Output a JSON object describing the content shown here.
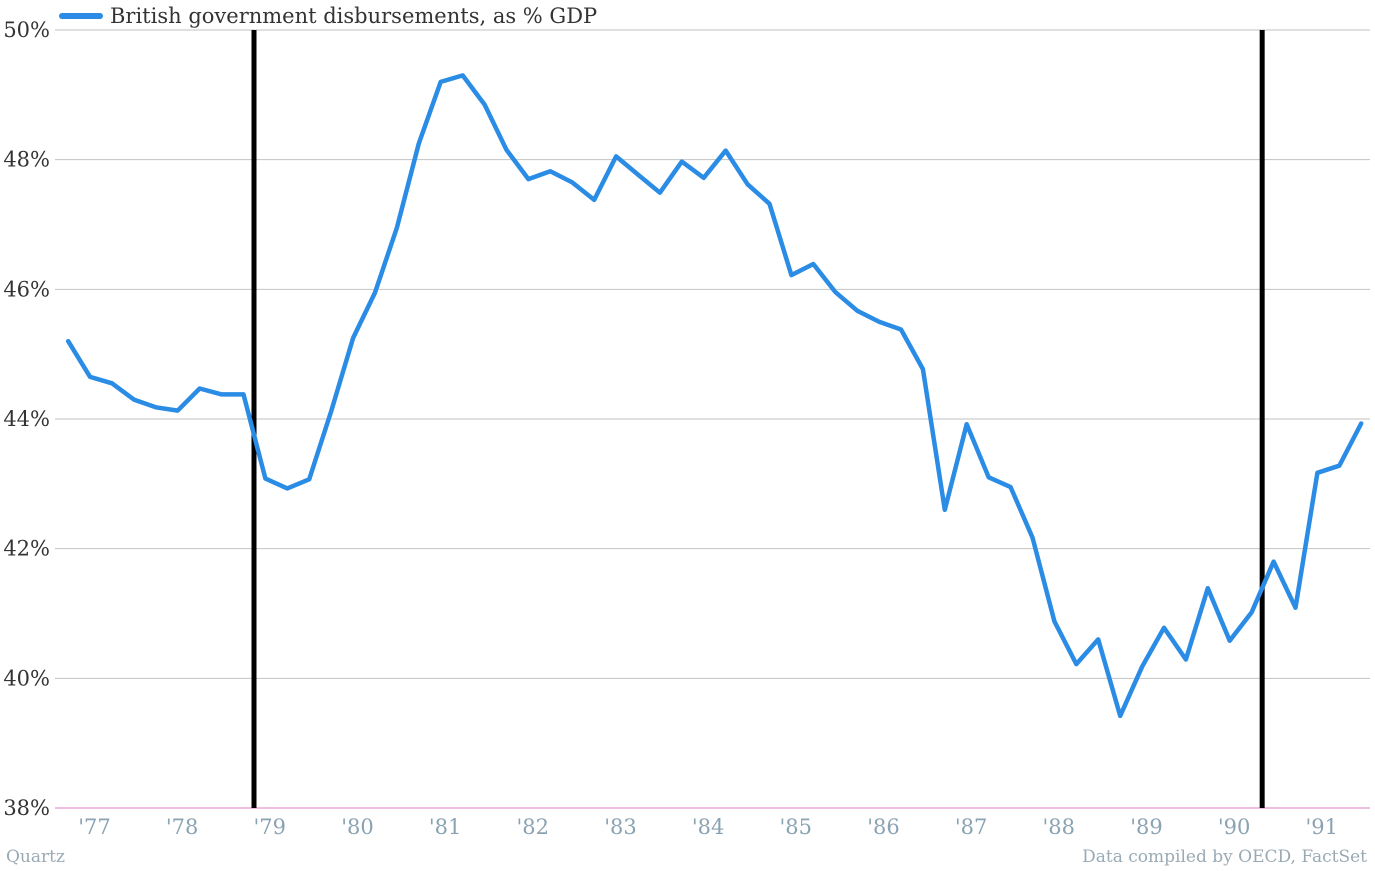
{
  "chart_data": {
    "type": "line",
    "title": "",
    "xlabel": "",
    "ylabel": "",
    "ylim": [
      38,
      50
    ],
    "y_ticks": [
      "38%",
      "40%",
      "42%",
      "44%",
      "46%",
      "48%",
      "50%"
    ],
    "y_tick_values": [
      38,
      40,
      42,
      44,
      46,
      48,
      50
    ],
    "x_ticks": [
      "'77",
      "'78",
      "'79",
      "'80",
      "'81",
      "'82",
      "'83",
      "'84",
      "'85",
      "'86",
      "'87",
      "'88",
      "'89",
      "'90",
      "'91"
    ],
    "x_tick_years": [
      1977,
      1978,
      1979,
      1980,
      1981,
      1982,
      1983,
      1984,
      1985,
      1986,
      1987,
      1988,
      1989,
      1990,
      1991
    ],
    "xlim": [
      1976.6,
      1991.6
    ],
    "grid": true,
    "legend_position": "top-left",
    "vertical_markers": [
      1978.87,
      1990.37
    ],
    "series": [
      {
        "name": "British government disbursements, as % GDP",
        "color": "#2b8ce5",
        "x": [
          1976.75,
          1977.0,
          1977.25,
          1977.5,
          1977.75,
          1978.0,
          1978.25,
          1978.5,
          1978.75,
          1979.0,
          1979.25,
          1979.5,
          1979.75,
          1980.0,
          1980.25,
          1980.5,
          1980.75,
          1981.0,
          1981.25,
          1981.5,
          1981.75,
          1982.0,
          1982.25,
          1982.5,
          1982.75,
          1983.0,
          1983.25,
          1983.5,
          1983.75,
          1984.0,
          1984.25,
          1984.5,
          1984.75,
          1985.0,
          1985.25,
          1985.5,
          1985.75,
          1986.0,
          1986.25,
          1986.5,
          1986.75,
          1987.0,
          1987.25,
          1987.5,
          1987.75,
          1988.0,
          1988.25,
          1988.5,
          1988.75,
          1989.0,
          1989.25,
          1989.5,
          1989.75,
          1990.0,
          1990.25,
          1990.5,
          1990.75,
          1991.0,
          1991.25,
          1991.5
        ],
        "values": [
          45.2,
          44.65,
          44.55,
          44.3,
          44.18,
          44.13,
          44.47,
          44.38,
          44.38,
          43.08,
          42.93,
          43.07,
          44.12,
          45.25,
          45.95,
          46.95,
          48.25,
          49.2,
          49.3,
          48.85,
          48.15,
          47.7,
          47.82,
          47.65,
          47.38,
          48.05,
          47.77,
          47.49,
          47.97,
          47.72,
          48.14,
          47.62,
          47.32,
          46.22,
          46.39,
          45.96,
          45.67,
          45.5,
          45.38,
          44.77,
          42.6,
          43.92,
          43.1,
          42.95,
          42.17,
          40.88,
          40.22,
          40.6,
          39.42,
          40.18,
          40.78,
          40.29,
          41.39,
          40.58,
          41.02,
          41.8,
          41.09,
          43.17,
          43.28,
          43.93
        ]
      }
    ]
  },
  "legend": {
    "label": "British government disbursements, as % GDP",
    "color": "#2b8ce5"
  },
  "footer": {
    "left": "Quartz",
    "right": "Data compiled by OECD, FactSet"
  },
  "colors": {
    "line": "#2b8ce5",
    "grid": "#c2c2c2",
    "baseline": "#e07ec0",
    "marker": "#000000"
  }
}
